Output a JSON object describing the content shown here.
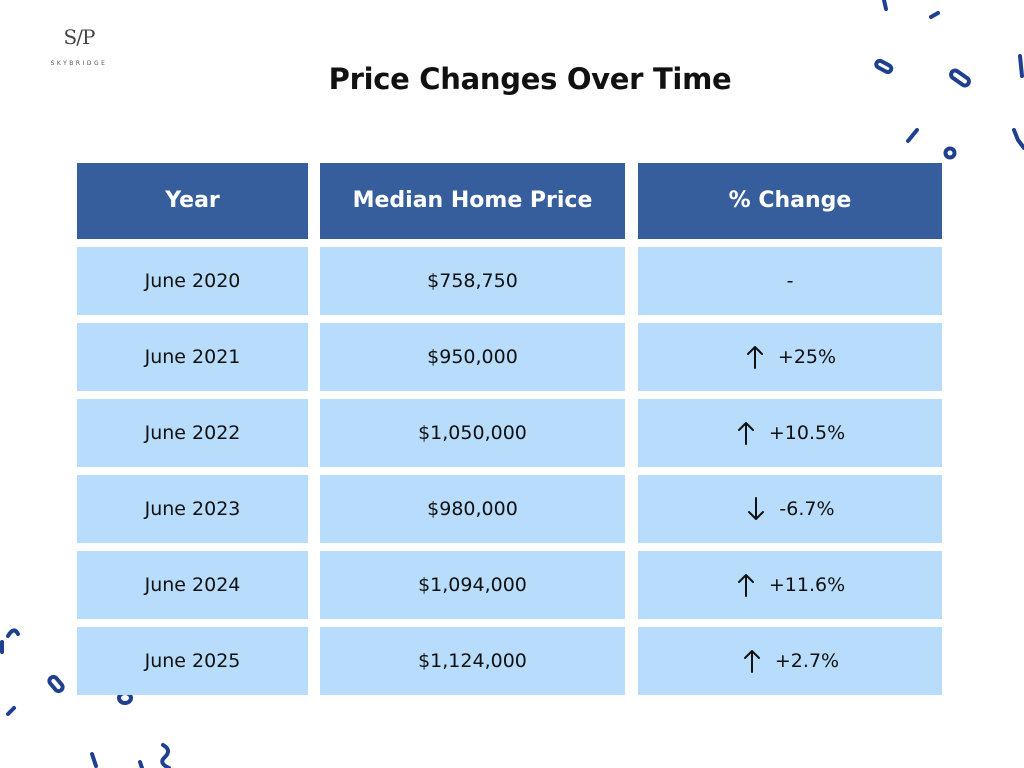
{
  "logo": {
    "mark": "S/P",
    "name": "SKYBRIDGE"
  },
  "chart_data": {
    "type": "table",
    "title": "Price Changes Over Time",
    "columns": [
      "Year",
      "Median Home Price",
      "% Change"
    ],
    "rows": [
      {
        "year": "June 2020",
        "price": "$758,750",
        "change": "-",
        "direction": "none"
      },
      {
        "year": "June 2021",
        "price": "$950,000",
        "change": "+25%",
        "direction": "up"
      },
      {
        "year": "June 2022",
        "price": "$1,050,000",
        "change": "+10.5%",
        "direction": "up"
      },
      {
        "year": "June 2023",
        "price": "$980,000",
        "change": "-6.7%",
        "direction": "down"
      },
      {
        "year": "June 2024",
        "price": "$1,094,000",
        "change": "+11.6%",
        "direction": "up"
      },
      {
        "year": "June 2025",
        "price": "$1,124,000",
        "change": "+2.7%",
        "direction": "up"
      }
    ]
  },
  "colors": {
    "header_bg": "#365e9c",
    "cell_bg": "#b8dcfb",
    "decoration": "#1f3f8f"
  }
}
